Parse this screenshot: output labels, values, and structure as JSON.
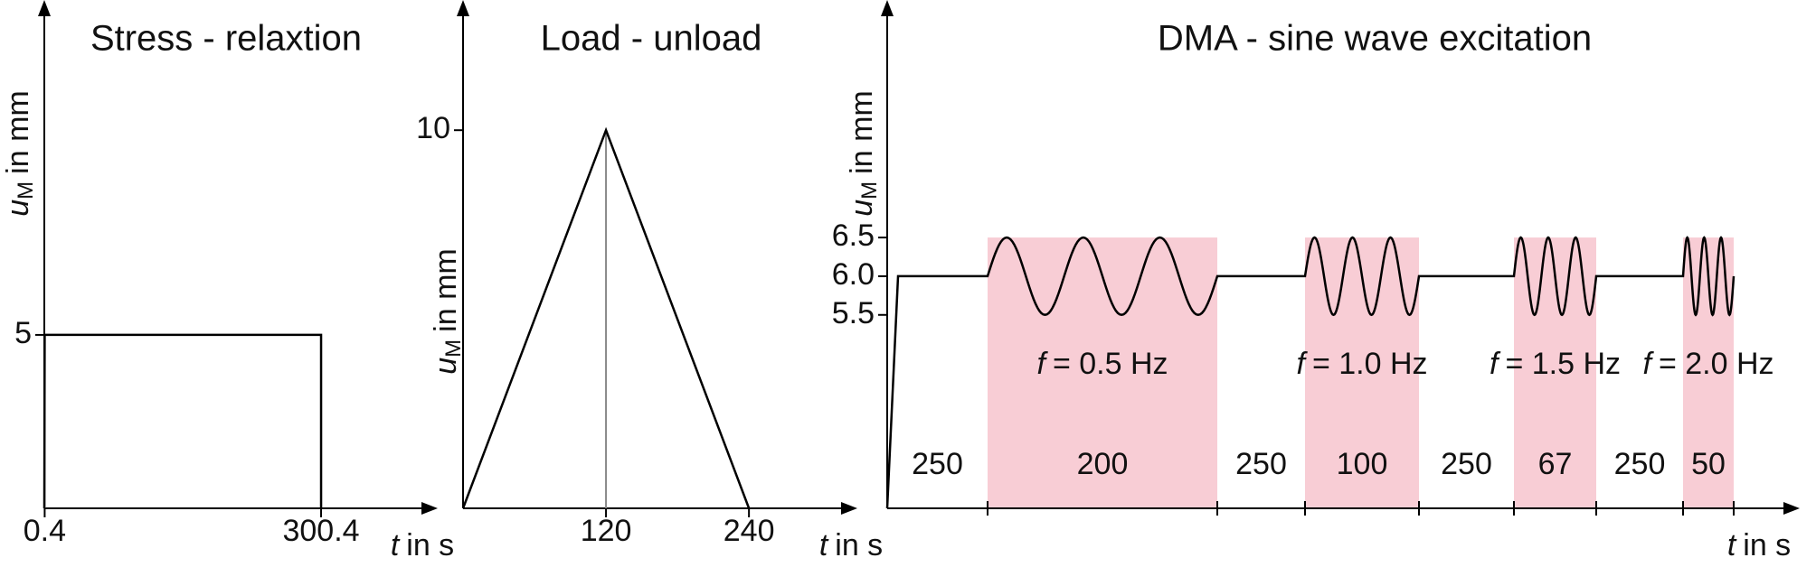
{
  "chart_data": [
    {
      "type": "line",
      "title": "Stress - relaxtion",
      "ylabel": [
        "u",
        "M",
        "in mm"
      ],
      "xlabel": [
        "t",
        "in s"
      ],
      "x": [
        0,
        0.4,
        300.4,
        300.4
      ],
      "values": [
        0,
        5,
        5,
        0
      ],
      "color": "#000000",
      "drop_lines": true,
      "xlim": [
        0,
        427
      ],
      "ylim": [
        0,
        14.5
      ],
      "xticks": [
        0.4,
        300.4
      ],
      "yticks": [
        5
      ]
    },
    {
      "type": "line",
      "title": "Load - unload",
      "ylabel": [
        "u",
        "M",
        "in mm"
      ],
      "xlabel": [
        "t",
        "in s"
      ],
      "x": [
        0,
        120,
        240
      ],
      "values": [
        0,
        10,
        0
      ],
      "color": "#000000",
      "drop_lines": true,
      "xlim": [
        0,
        331
      ],
      "ylim": [
        0,
        13.3
      ],
      "xticks": [
        120,
        240
      ],
      "yticks": [
        10
      ]
    },
    {
      "type": "sine",
      "title": "DMA - sine wave excitation",
      "ylabel": [
        "u",
        "M",
        "in mm"
      ],
      "xlabel": [
        "t",
        "in s"
      ],
      "color": "#000000",
      "highlight_color": "#f8cdd5",
      "ylim": [
        3,
        9.5
      ],
      "yticks": [
        5.5,
        {
          "value": 6,
          "label": "6.0"
        },
        6.5
      ],
      "frequency_symbol": "f",
      "segments": [
        {
          "duration": 250
        },
        {
          "duration": 200,
          "frequency": "= 0.5 Hz"
        },
        {
          "duration": 250
        },
        {
          "duration": 100,
          "frequency": "= 1.0 Hz"
        },
        {
          "duration": 250
        },
        {
          "duration": 67,
          "frequency": "= 1.5 Hz"
        },
        {
          "duration": 250
        },
        {
          "duration": 50,
          "frequency": "= 2.0 Hz"
        }
      ]
    }
  ]
}
